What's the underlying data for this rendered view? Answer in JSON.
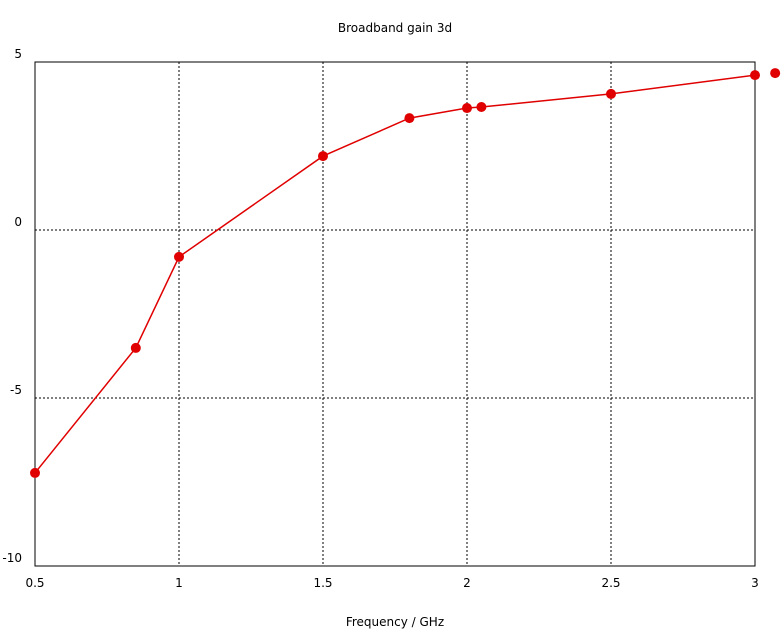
{
  "chart_data": {
    "type": "line",
    "title": "Broadband gain 3d",
    "x_label": "Frequency / GHz",
    "x": [
      0.5,
      0.85,
      1.0,
      1.5,
      1.8,
      2.0,
      2.05,
      2.5,
      3.0,
      3.07
    ],
    "series": [
      {
        "color": "#e00000",
        "values": [
          -7.23,
          -3.51,
          -0.8,
          2.2,
          3.33,
          3.63,
          3.66,
          4.05,
          4.61,
          4.67
        ]
      }
    ],
    "xlim": [
      0.5,
      3
    ],
    "xticks": [
      0.5,
      1,
      1.5,
      2,
      2.5,
      3
    ],
    "ylim": [
      -10,
      5
    ],
    "yticks": [
      -10,
      -5,
      0,
      5
    ],
    "grid": true
  }
}
